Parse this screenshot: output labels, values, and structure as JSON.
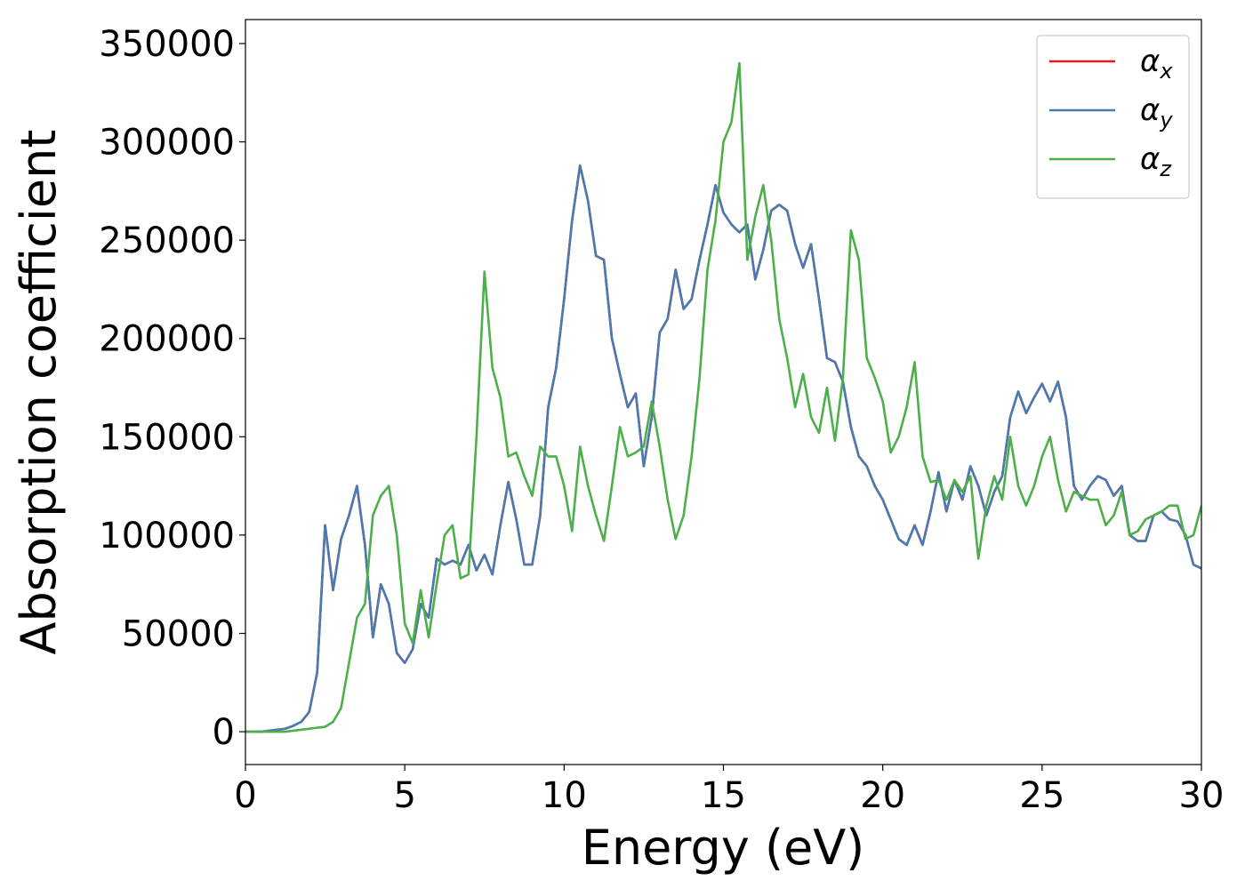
{
  "chart_data": {
    "type": "line",
    "xlabel": "Energy (eV)",
    "ylabel": "Absorption coefficient",
    "x": [
      0,
      0.25,
      0.5,
      0.75,
      1,
      1.25,
      1.5,
      1.75,
      2,
      2.25,
      2.5,
      2.75,
      3,
      3.25,
      3.5,
      3.75,
      4,
      4.25,
      4.5,
      4.75,
      5,
      5.25,
      5.5,
      5.75,
      6,
      6.25,
      6.5,
      6.75,
      7,
      7.25,
      7.5,
      7.75,
      8,
      8.25,
      8.5,
      8.75,
      9,
      9.25,
      9.5,
      9.75,
      10,
      10.25,
      10.5,
      10.75,
      11,
      11.25,
      11.5,
      11.75,
      12,
      12.25,
      12.5,
      12.75,
      13,
      13.25,
      13.5,
      13.75,
      14,
      14.25,
      14.5,
      14.75,
      15,
      15.25,
      15.5,
      15.75,
      16,
      16.25,
      16.5,
      16.75,
      17,
      17.25,
      17.5,
      17.75,
      18,
      18.25,
      18.5,
      18.75,
      19,
      19.25,
      19.5,
      19.75,
      20,
      20.25,
      20.5,
      20.75,
      21,
      21.25,
      21.5,
      21.75,
      22,
      22.25,
      22.5,
      22.75,
      23,
      23.25,
      23.5,
      23.75,
      24,
      24.25,
      24.5,
      24.75,
      25,
      25.25,
      25.5,
      25.75,
      26,
      26.25,
      26.5,
      26.75,
      27,
      27.25,
      27.5,
      27.75,
      28,
      28.25,
      28.5,
      28.75,
      29,
      29.25,
      29.5,
      29.75,
      30
    ],
    "series": [
      {
        "name": "αx",
        "color": "#e41a1c",
        "values": [
          0,
          0,
          0,
          500,
          1000,
          1500,
          3000,
          5000,
          10000,
          30000,
          105000,
          72000,
          98000,
          110000,
          125000,
          95000,
          48000,
          75000,
          65000,
          40000,
          35000,
          42000,
          65000,
          58000,
          88000,
          85000,
          87000,
          85000,
          95000,
          82000,
          90000,
          80000,
          105000,
          127000,
          108000,
          85000,
          85000,
          110000,
          165000,
          185000,
          220000,
          260000,
          288000,
          270000,
          242000,
          240000,
          200000,
          182000,
          165000,
          172000,
          135000,
          160000,
          203000,
          210000,
          235000,
          215000,
          220000,
          240000,
          258000,
          278000,
          264000,
          258000,
          254000,
          258000,
          230000,
          245000,
          265000,
          268000,
          265000,
          248000,
          236000,
          248000,
          220000,
          190000,
          188000,
          178000,
          155000,
          140000,
          135000,
          125000,
          118000,
          108000,
          98000,
          95000,
          105000,
          95000,
          112000,
          132000,
          112000,
          128000,
          118000,
          135000,
          125000,
          110000,
          122000,
          130000,
          160000,
          173000,
          162000,
          170000,
          177000,
          168000,
          178000,
          160000,
          125000,
          118000,
          125000,
          130000,
          128000,
          120000,
          125000,
          100000,
          97000,
          97000,
          110000,
          112000,
          108000,
          107000,
          100000,
          85000,
          83000
        ]
      },
      {
        "name": "αy",
        "color": "#4a7bb0",
        "values": [
          0,
          0,
          0,
          500,
          1000,
          1500,
          3000,
          5000,
          10000,
          30000,
          105000,
          72000,
          98000,
          110000,
          125000,
          95000,
          48000,
          75000,
          65000,
          40000,
          35000,
          42000,
          65000,
          58000,
          88000,
          85000,
          87000,
          85000,
          95000,
          82000,
          90000,
          80000,
          105000,
          127000,
          108000,
          85000,
          85000,
          110000,
          165000,
          185000,
          220000,
          260000,
          288000,
          270000,
          242000,
          240000,
          200000,
          182000,
          165000,
          172000,
          135000,
          160000,
          203000,
          210000,
          235000,
          215000,
          220000,
          240000,
          258000,
          278000,
          264000,
          258000,
          254000,
          258000,
          230000,
          245000,
          265000,
          268000,
          265000,
          248000,
          236000,
          248000,
          220000,
          190000,
          188000,
          178000,
          155000,
          140000,
          135000,
          125000,
          118000,
          108000,
          98000,
          95000,
          105000,
          95000,
          112000,
          132000,
          112000,
          128000,
          118000,
          135000,
          125000,
          110000,
          122000,
          130000,
          160000,
          173000,
          162000,
          170000,
          177000,
          168000,
          178000,
          160000,
          125000,
          118000,
          125000,
          130000,
          128000,
          120000,
          125000,
          100000,
          97000,
          97000,
          110000,
          112000,
          108000,
          107000,
          100000,
          85000,
          83000
        ]
      },
      {
        "name": "αz",
        "color": "#4daf4a",
        "values": [
          0,
          0,
          0,
          0,
          0,
          0,
          500,
          1000,
          1500,
          2000,
          2500,
          5000,
          12000,
          35000,
          58000,
          65000,
          110000,
          120000,
          125000,
          100000,
          55000,
          45000,
          72000,
          48000,
          75000,
          100000,
          105000,
          78000,
          80000,
          150000,
          234000,
          185000,
          170000,
          140000,
          142000,
          130000,
          120000,
          145000,
          140000,
          140000,
          125000,
          102000,
          145000,
          125000,
          110000,
          97000,
          125000,
          155000,
          140000,
          142000,
          145000,
          168000,
          145000,
          118000,
          98000,
          110000,
          140000,
          180000,
          235000,
          260000,
          300000,
          310000,
          340000,
          240000,
          262000,
          278000,
          250000,
          210000,
          190000,
          165000,
          182000,
          160000,
          152000,
          175000,
          148000,
          180000,
          255000,
          240000,
          190000,
          180000,
          168000,
          142000,
          150000,
          165000,
          188000,
          140000,
          127000,
          128000,
          118000,
          128000,
          122000,
          130000,
          88000,
          115000,
          130000,
          118000,
          150000,
          125000,
          115000,
          125000,
          140000,
          150000,
          128000,
          112000,
          122000,
          120000,
          118000,
          118000,
          105000,
          110000,
          122000,
          100000,
          102000,
          108000,
          110000,
          112000,
          115000,
          115000,
          98000,
          100000,
          115000
        ]
      }
    ],
    "xlim": [
      0,
      30
    ],
    "xticks": [
      0,
      5,
      10,
      15,
      20,
      25,
      30
    ],
    "ylim": [
      -16700,
      362200
    ],
    "yticks": [
      0,
      50000,
      100000,
      150000,
      200000,
      250000,
      300000,
      350000
    ],
    "legend": "upper right",
    "grid": false
  }
}
